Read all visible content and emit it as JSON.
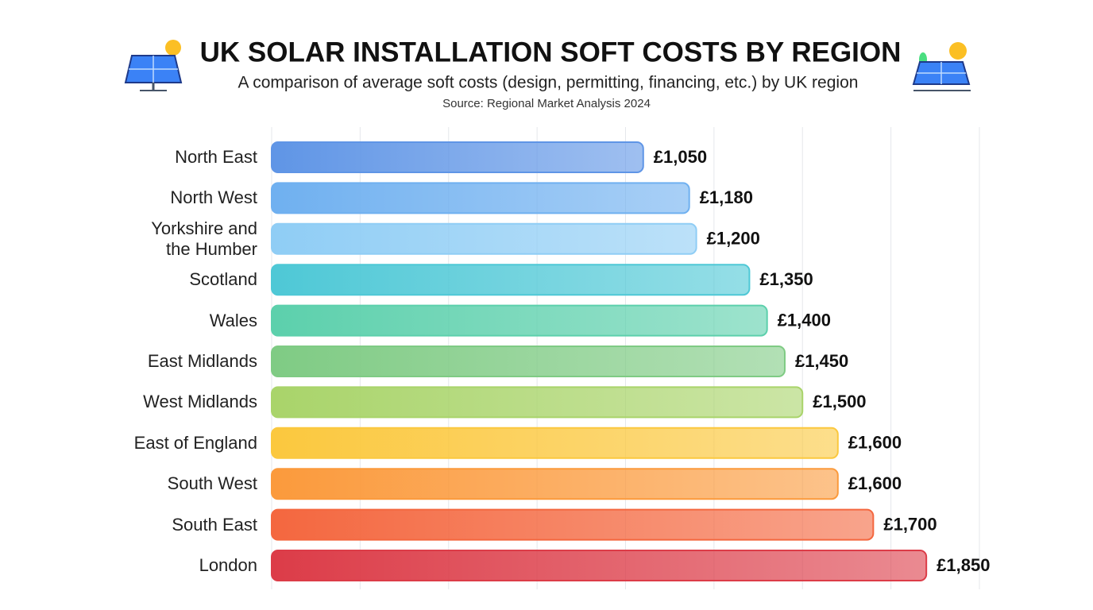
{
  "chart_data": {
    "type": "hbar",
    "title": "UK SOLAR INSTALLATION SOFT COSTS BY REGION",
    "subtitle": "A comparison of average soft costs (design, permitting, financing, etc.) by UK region",
    "source": "Source: Regional Market Analysis 2024",
    "categories": [
      "North East",
      "North West",
      "Yorkshire and\nthe Humber",
      "Scotland",
      "Wales",
      "East Midlands",
      "West Midlands",
      "East of England",
      "South West",
      "South East",
      "London"
    ],
    "values": [
      1050,
      1180,
      1200,
      1350,
      1400,
      1450,
      1500,
      1600,
      1600,
      1700,
      1850
    ],
    "value_labels": [
      "£1,050",
      "£1,180",
      "£1,200",
      "£1,350",
      "£1,400",
      "£1,450",
      "£1,500",
      "£1,600",
      "£1,600",
      "£1,700",
      "£1,850"
    ],
    "colors": [
      "#5f95e6",
      "#6fb0f0",
      "#8fcdf5",
      "#4ec8d6",
      "#5cd0ac",
      "#7fcb84",
      "#a9d46a",
      "#fbc83e",
      "#fb9a3c",
      "#f4673f",
      "#dc3c48"
    ],
    "xlim": [
      0,
      2000
    ],
    "xticks": [
      0,
      250,
      500,
      750,
      1000,
      1250,
      1500,
      1750,
      2000
    ],
    "grid": true
  }
}
